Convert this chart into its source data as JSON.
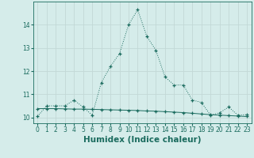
{
  "xlabel": "Humidex (Indice chaleur)",
  "background_color": "#d5ecea",
  "grid_color": "#c2d8d6",
  "line_color": "#1a6b5e",
  "xlim": [
    -0.5,
    23.5
  ],
  "ylim": [
    9.75,
    15.0
  ],
  "yticks": [
    10,
    11,
    12,
    13,
    14
  ],
  "xticks": [
    0,
    1,
    2,
    3,
    4,
    5,
    6,
    7,
    8,
    9,
    10,
    11,
    12,
    13,
    14,
    15,
    16,
    17,
    18,
    19,
    20,
    21,
    22,
    23
  ],
  "series1_x": [
    0,
    1,
    2,
    3,
    4,
    5,
    6,
    7,
    8,
    9,
    10,
    11,
    12,
    13,
    14,
    15,
    16,
    17,
    18,
    19,
    20,
    21,
    22,
    23
  ],
  "series1_y": [
    10.05,
    10.5,
    10.5,
    10.5,
    10.75,
    10.45,
    10.1,
    11.5,
    12.2,
    12.75,
    14.0,
    14.65,
    13.5,
    12.9,
    11.75,
    11.4,
    11.4,
    10.75,
    10.65,
    10.1,
    10.2,
    10.45,
    10.1,
    10.12
  ],
  "series2_x": [
    0,
    1,
    2,
    3,
    4,
    5,
    6,
    7,
    8,
    9,
    10,
    11,
    12,
    13,
    14,
    15,
    16,
    17,
    18,
    19,
    20,
    21,
    22,
    23
  ],
  "series2_y": [
    10.38,
    10.38,
    10.38,
    10.37,
    10.36,
    10.36,
    10.35,
    10.34,
    10.33,
    10.32,
    10.31,
    10.3,
    10.28,
    10.27,
    10.25,
    10.23,
    10.21,
    10.18,
    10.15,
    10.12,
    10.1,
    10.08,
    10.06,
    10.04
  ],
  "font_color": "#1a6b5e",
  "tick_fontsize": 5.5,
  "label_fontsize": 7.5
}
